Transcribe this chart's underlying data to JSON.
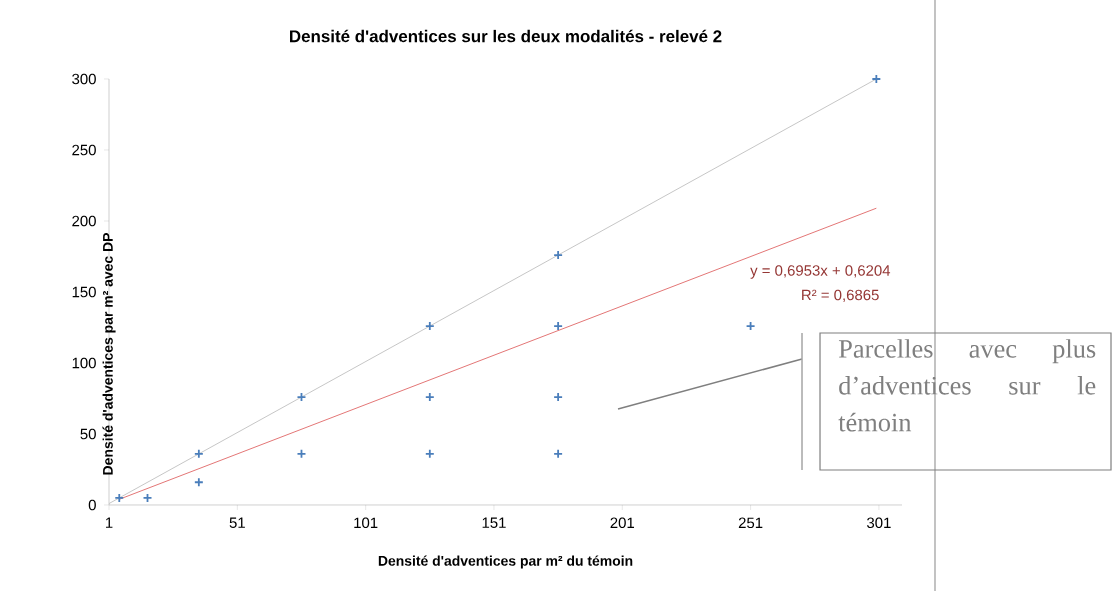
{
  "chart_data": {
    "type": "scatter",
    "title": "Densité d'adventices sur les deux modalités - relevé 2",
    "xlabel": "Densité d'adventices par m² du témoin",
    "ylabel": "Densité d'adventices par m² avec DP",
    "xlim": [
      1,
      310
    ],
    "ylim": [
      0,
      300
    ],
    "xticks": [
      1,
      51,
      101,
      151,
      201,
      251,
      301
    ],
    "yticks": [
      0,
      50,
      100,
      150,
      200,
      250,
      300
    ],
    "marker": "cross",
    "series": [
      {
        "color": "#4a7ebb",
        "x": [
          5,
          16,
          36,
          36,
          76,
          76,
          126,
          126,
          126,
          176,
          176,
          176,
          176,
          251,
          300
        ],
        "values": [
          5,
          5,
          36,
          16,
          76,
          36,
          126,
          76,
          36,
          176,
          126,
          76,
          36,
          126,
          300
        ]
      },
      {
        "type": "line",
        "color": "#bfbfbf",
        "marker": "none",
        "x": [
          1,
          300
        ],
        "values": [
          1,
          300
        ]
      },
      {
        "type": "line",
        "color": "#e06666",
        "marker": "none",
        "x": [
          5,
          300
        ],
        "values": [
          4,
          209
        ]
      }
    ],
    "annotations": [
      "y = 0,6953x + 0,6204",
      "R² = 0,6865",
      "Parcelles avec plus d’adventices sur le témoin"
    ]
  }
}
